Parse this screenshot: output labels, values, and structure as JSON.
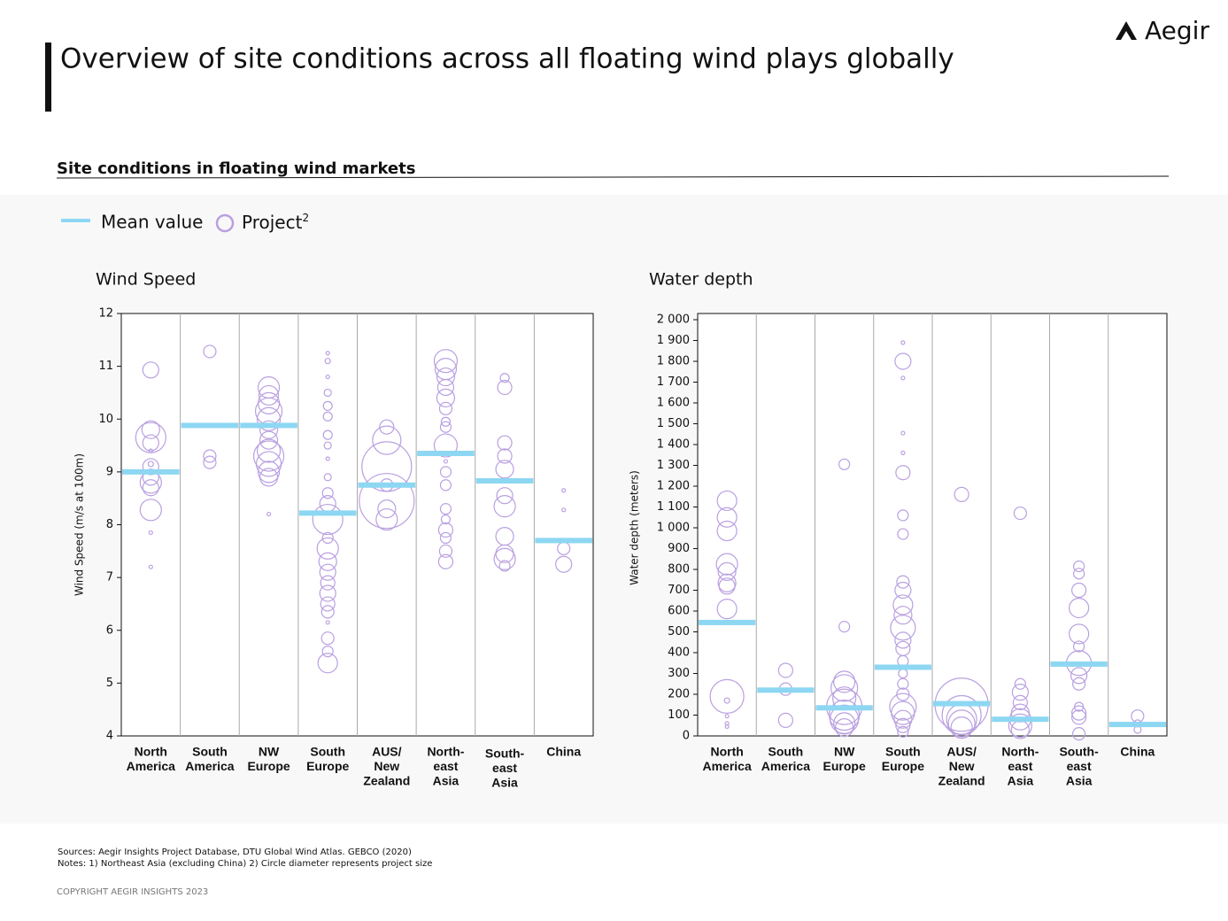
{
  "header": {
    "title": "Overview of site conditions across all floating wind plays globally",
    "logo": "Aegir",
    "subtitle": "Site conditions in floating wind markets"
  },
  "footer": {
    "sources": "Sources: Aegir Insights Project Database, DTU Global Wind Atlas. GEBCO (2020)",
    "notes": "Notes: 1) Northeast Asia (excluding China) 2) Circle diameter represents project size",
    "copyright": "COPYRIGHT  AEGIR  INSIGHTS  2023"
  },
  "chart_data": [
    {
      "type": "bubble-strip",
      "title": "Wind Speed",
      "y_label": "Wind Speed (m/s at 100m)",
      "categories": [
        [
          "North",
          "America"
        ],
        [
          "South",
          "America"
        ],
        [
          "NW",
          "Europe"
        ],
        [
          "South",
          "Europe"
        ],
        [
          "AUS/",
          "New",
          "Zealand"
        ],
        [
          "North-",
          "east",
          "Asia"
        ],
        [
          "South-",
          "east",
          "Asia"
        ],
        [
          "China"
        ]
      ],
      "ylim": [
        4,
        12
      ],
      "yticks": [
        4,
        5,
        6,
        7,
        8,
        9,
        10,
        11,
        12
      ],
      "series": [
        {
          "name": "Mean value",
          "color": "#8dd7f2",
          "values": [
            9.0,
            9.88,
            9.88,
            8.22,
            8.75,
            9.35,
            8.83,
            7.7
          ]
        },
        {
          "name": "Project",
          "name_sup": "2",
          "color": "#b9a0e0",
          "points": [
            [
              [
                10.93,
                9
              ],
              [
                9.8,
                10
              ],
              [
                9.65,
                17
              ],
              [
                9.55,
                9
              ],
              [
                9.4,
                2
              ],
              [
                9.15,
                3
              ],
              [
                9.1,
                9
              ],
              [
                8.9,
                9
              ],
              [
                8.8,
                12
              ],
              [
                8.7,
                9
              ],
              [
                8.28,
                12
              ],
              [
                7.85,
                2
              ],
              [
                7.2,
                2
              ]
            ],
            [
              [
                11.28,
                7
              ],
              [
                9.3,
                7
              ],
              [
                9.18,
                7
              ]
            ],
            [
              [
                10.6,
                12
              ],
              [
                10.45,
                11
              ],
              [
                10.3,
                12
              ],
              [
                10.15,
                15
              ],
              [
                10.0,
                13
              ],
              [
                9.8,
                10
              ],
              [
                9.6,
                10
              ],
              [
                9.4,
                13
              ],
              [
                9.3,
                17
              ],
              [
                9.15,
                14
              ],
              [
                9.0,
                12
              ],
              [
                8.9,
                10
              ],
              [
                8.2,
                2
              ]
            ],
            [
              [
                11.25,
                2
              ],
              [
                11.1,
                3
              ],
              [
                10.8,
                2
              ],
              [
                10.5,
                4
              ],
              [
                10.25,
                5
              ],
              [
                10.05,
                5
              ],
              [
                9.7,
                5
              ],
              [
                9.5,
                4
              ],
              [
                9.25,
                2
              ],
              [
                8.9,
                4
              ],
              [
                8.6,
                6
              ],
              [
                8.4,
                9
              ],
              [
                8.1,
                17
              ],
              [
                7.75,
                6
              ],
              [
                7.55,
                12
              ],
              [
                7.3,
                10
              ],
              [
                7.1,
                9
              ],
              [
                6.9,
                8
              ],
              [
                6.7,
                9
              ],
              [
                6.5,
                8
              ],
              [
                6.35,
                7
              ],
              [
                6.15,
                2
              ],
              [
                5.85,
                7
              ],
              [
                5.6,
                6
              ],
              [
                5.38,
                11
              ]
            ],
            [
              [
                9.85,
                8
              ],
              [
                9.6,
                16
              ],
              [
                9.1,
                28
              ],
              [
                8.75,
                7
              ],
              [
                8.45,
                31
              ],
              [
                8.3,
                10
              ],
              [
                8.1,
                12
              ]
            ],
            [
              [
                11.1,
                13
              ],
              [
                10.95,
                12
              ],
              [
                10.8,
                10
              ],
              [
                10.6,
                9
              ],
              [
                10.4,
                10
              ],
              [
                10.2,
                7
              ],
              [
                9.95,
                5
              ],
              [
                9.85,
                6
              ],
              [
                9.5,
                13
              ],
              [
                9.2,
                2
              ],
              [
                9.0,
                6
              ],
              [
                8.75,
                6
              ],
              [
                8.3,
                6
              ],
              [
                8.1,
                5
              ],
              [
                7.9,
                8
              ],
              [
                7.75,
                6
              ],
              [
                7.5,
                7
              ],
              [
                7.3,
                8
              ]
            ],
            [
              [
                10.78,
                5
              ],
              [
                10.6,
                8
              ],
              [
                9.55,
                8
              ],
              [
                9.3,
                8
              ],
              [
                9.05,
                10
              ],
              [
                8.55,
                9
              ],
              [
                8.35,
                12
              ],
              [
                7.78,
                10
              ],
              [
                7.45,
                10
              ],
              [
                7.35,
                12
              ],
              [
                7.22,
                6
              ]
            ],
            [
              [
                8.65,
                2
              ],
              [
                8.28,
                2
              ],
              [
                7.7,
                2
              ],
              [
                7.55,
                7
              ],
              [
                7.25,
                9
              ]
            ]
          ]
        }
      ]
    },
    {
      "type": "bubble-strip",
      "title": "Water depth",
      "y_label": "Water depth (meters)",
      "categories": [
        [
          "North",
          "America"
        ],
        [
          "South",
          "America"
        ],
        [
          "NW",
          "Europe"
        ],
        [
          "South",
          "Europe"
        ],
        [
          "AUS/",
          "New",
          "Zealand"
        ],
        [
          "North-",
          "east",
          "Asia"
        ],
        [
          "South-",
          "east",
          "Asia"
        ],
        [
          "China"
        ]
      ],
      "ylim": [
        0,
        2000
      ],
      "yticks": [
        0,
        100,
        200,
        300,
        400,
        500,
        600,
        700,
        800,
        900,
        {
          "value": 1000,
          "label": "1 000"
        },
        {
          "value": 1100,
          "label": "1 100"
        },
        {
          "value": 1200,
          "label": "1 200"
        },
        {
          "value": 1300,
          "label": "1 300"
        },
        {
          "value": 1400,
          "label": "1 400"
        },
        {
          "value": 1500,
          "label": "1 500"
        },
        {
          "value": 1600,
          "label": "1 600"
        },
        {
          "value": 1700,
          "label": "1 700"
        },
        {
          "value": 1800,
          "label": "1 800"
        },
        {
          "value": 1900,
          "label": "1 900"
        },
        {
          "value": 2000,
          "label": "2 000"
        }
      ],
      "series": [
        {
          "name": "Mean value",
          "color": "#8dd7f2",
          "values": [
            545,
            220,
            135,
            330,
            155,
            80,
            345,
            55
          ]
        },
        {
          "name": "Project",
          "color": "#b9a0e0",
          "points": [
            [
              [
                1130,
                11
              ],
              [
                1050,
                11
              ],
              [
                985,
                11
              ],
              [
                825,
                12
              ],
              [
                790,
                10
              ],
              [
                735,
                10
              ],
              [
                720,
                9
              ],
              [
                610,
                11
              ],
              [
                190,
                19
              ],
              [
                170,
                3
              ],
              [
                95,
                2
              ],
              [
                60,
                2
              ],
              [
                45,
                2
              ]
            ],
            [
              [
                315,
                8
              ],
              [
                225,
                7
              ],
              [
                75,
                8
              ]
            ],
            [
              [
                1305,
                6
              ],
              [
                525,
                6
              ],
              [
                260,
                12
              ],
              [
                230,
                15
              ],
              [
                180,
                13
              ],
              [
                140,
                20
              ],
              [
                100,
                17
              ],
              [
                80,
                16
              ],
              [
                60,
                12
              ],
              [
                40,
                10
              ]
            ],
            [
              [
                1890,
                2
              ],
              [
                1800,
                9
              ],
              [
                1720,
                2
              ],
              [
                1455,
                2
              ],
              [
                1360,
                2
              ],
              [
                1265,
                8
              ],
              [
                1060,
                6
              ],
              [
                970,
                6
              ],
              [
                740,
                7
              ],
              [
                700,
                9
              ],
              [
                630,
                11
              ],
              [
                580,
                10
              ],
              [
                520,
                14
              ],
              [
                460,
                9
              ],
              [
                420,
                8
              ],
              [
                360,
                6
              ],
              [
                300,
                5
              ],
              [
                250,
                6
              ],
              [
                200,
                7
              ],
              [
                140,
                15
              ],
              [
                110,
                13
              ],
              [
                80,
                10
              ],
              [
                50,
                8
              ],
              [
                20,
                6
              ]
            ],
            [
              [
                1160,
                8
              ],
              [
                150,
                30
              ],
              [
                100,
                22
              ],
              [
                80,
                17
              ],
              [
                60,
                15
              ],
              [
                40,
                12
              ]
            ],
            [
              [
                1070,
                7
              ],
              [
                250,
                6
              ],
              [
                210,
                9
              ],
              [
                160,
                8
              ],
              [
                110,
                10
              ],
              [
                80,
                12
              ],
              [
                50,
                13
              ],
              [
                30,
                10
              ]
            ],
            [
              [
                815,
                6
              ],
              [
                780,
                6
              ],
              [
                700,
                8
              ],
              [
                615,
                11
              ],
              [
                490,
                11
              ],
              [
                430,
                6
              ],
              [
                350,
                14
              ],
              [
                290,
                9
              ],
              [
                250,
                7
              ],
              [
                140,
                5
              ],
              [
                110,
                8
              ],
              [
                90,
                8
              ],
              [
                10,
                7
              ]
            ],
            [
              [
                95,
                7
              ],
              [
                60,
                4
              ],
              [
                30,
                4
              ]
            ]
          ]
        }
      ]
    }
  ]
}
